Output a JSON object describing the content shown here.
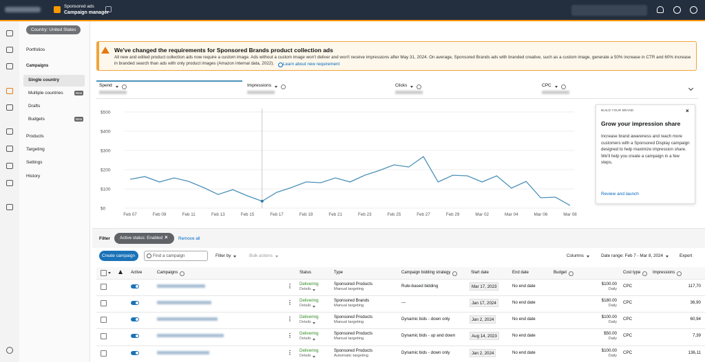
{
  "header": {
    "product": "Sponsored ads",
    "app": "Campaign manager"
  },
  "sidebar": {
    "country": "Country: United States",
    "nav": [
      {
        "label": "Portfolios"
      },
      {
        "label": "Campaigns"
      },
      {
        "label": "Single country"
      },
      {
        "label": "Multiple countries",
        "badge": "Beta"
      },
      {
        "label": "Drafts"
      },
      {
        "label": "Budgets",
        "badge": "Beta"
      },
      {
        "label": "Products"
      },
      {
        "label": "Targeting"
      },
      {
        "label": "Settings"
      },
      {
        "label": "History"
      }
    ]
  },
  "banner": {
    "title": "We've changed the requirements for Sponsored Brands product collection ads",
    "body": "All new and edited product collection ads now require a custom image. Ads without a custom image won't deliver and won't receive impressions after May 31, 2024. On average, Sponsored Brands ads with branded creative, such as a custom image, generate a 50% increase in CTR and 60% increase in branded search than ads with only product images (Amazon internal data, 2022).",
    "link": "Learn about new requirement"
  },
  "metrics": [
    "Spend",
    "Impressions",
    "Clicks",
    "CPC"
  ],
  "chart_data": {
    "type": "line",
    "color": "#4a90b8",
    "grid": true,
    "categories": [
      "Feb 07",
      null,
      "Feb 09",
      null,
      "Feb 11",
      null,
      "Feb 13",
      null,
      "Feb 15",
      null,
      "Feb 17",
      null,
      "Feb 19",
      null,
      "Feb 21",
      null,
      "Feb 23",
      null,
      "Feb 25",
      null,
      "Feb 27",
      null,
      "Feb 29",
      null,
      "Mar 02",
      null,
      "Mar 04",
      null,
      "Mar 06",
      null,
      "Mar 08"
    ],
    "values": [
      150,
      164,
      136,
      157,
      139,
      107,
      71,
      96,
      64,
      36,
      82,
      107,
      136,
      132,
      157,
      136,
      171,
      196,
      225,
      214,
      268,
      136,
      171,
      168,
      136,
      168,
      104,
      139,
      54,
      57,
      14
    ],
    "ylim": [
      0,
      500
    ],
    "yticks": [
      {
        "value": 0,
        "label": "$0"
      },
      {
        "value": 100,
        "label": "$100"
      },
      {
        "value": 200,
        "label": "$200"
      },
      {
        "value": 300,
        "label": "$300"
      },
      {
        "value": 400,
        "label": "$400"
      },
      {
        "value": 500,
        "label": "$500"
      }
    ]
  },
  "promo": {
    "eyebrow": "BUILD YOUR BRAND",
    "title": "Grow your impression share",
    "body": "Increase brand awareness and reach more customers with a Sponsored Display campaign designed to help maximize impression share. We'll help you create a campaign in a few steps.",
    "link": "Review and launch"
  },
  "filters": {
    "label": "Filter",
    "chip": "Active status: Enabled",
    "remove": "Remove all"
  },
  "toolbar": {
    "create": "Create campaign",
    "search": "Find a campaign",
    "filter_by": "Filter by",
    "bulk": "Bulk actions",
    "columns": "Columns",
    "date_range": "Date range: Feb 7 - Mar 8, 2024",
    "export": "Export"
  },
  "table": {
    "headers": [
      "Active",
      "Campaigns",
      "Status",
      "Type",
      "Campaign bidding strategy",
      "Start date",
      "End date",
      "Budget",
      "Cost type",
      "Impressions"
    ],
    "rows": [
      {
        "status": "Delivering",
        "detail": "Details",
        "type": "Sponsored Products",
        "targeting": "Manual targeting",
        "strategy": "Rule-based bidding",
        "start": "Mar 17, 2023",
        "end": "No end date",
        "budget": "$100.00",
        "period": "Daily",
        "cost": "CPC",
        "impressions": "117,70"
      },
      {
        "status": "Delivering",
        "detail": "Details",
        "type": "Sponsored Brands",
        "targeting": "Manual targeting",
        "strategy": "—",
        "start": "Jan 17, 2024",
        "end": "No end date",
        "budget": "$180.00",
        "period": "Daily",
        "cost": "CPC",
        "impressions": "36,90"
      },
      {
        "status": "Delivering",
        "detail": "Details",
        "type": "Sponsored Products",
        "targeting": "Manual targeting",
        "strategy": "Dynamic bids - down only",
        "start": "Jan 2, 2024",
        "end": "No end date",
        "budget": "$100.00",
        "period": "Daily",
        "cost": "CPC",
        "impressions": "60,94"
      },
      {
        "status": "Delivering",
        "detail": "Details",
        "type": "Sponsored Products",
        "targeting": "Manual targeting",
        "strategy": "Dynamic bids - up and down",
        "start": "Aug 14, 2023",
        "end": "No end date",
        "budget": "$50.00",
        "period": "Daily",
        "cost": "CPC",
        "impressions": "7,39"
      },
      {
        "status": "Delivering",
        "detail": "Details",
        "type": "Sponsored Products",
        "targeting": "Automatic targeting",
        "strategy": "Dynamic bids - down only",
        "start": "Jan 2, 2024",
        "end": "No end date",
        "budget": "$100.00",
        "period": "Daily",
        "cost": "CPC",
        "impressions": "136,11"
      }
    ]
  }
}
